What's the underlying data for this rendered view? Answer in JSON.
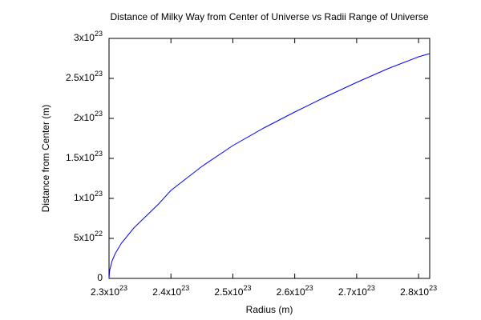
{
  "chart_data": {
    "type": "line",
    "title": "Distance of Milky Way from Center of Universe vs Radii Range of Universe",
    "x_label": "Radius (m)",
    "y_label": "Distance from Center (m)",
    "x": [
      2.3e+23,
      2.301e+23,
      2.305e+23,
      2.31e+23,
      2.32e+23,
      2.34e+23,
      2.36e+23,
      2.38e+23,
      2.4e+23,
      2.45e+23,
      2.5e+23,
      2.55e+23,
      2.6e+23,
      2.65e+23,
      2.7e+23,
      2.75e+23,
      2.8e+23,
      2.818e+23
    ],
    "series": [
      {
        "color": "#0000ff",
        "values": [
          0,
          1e+22,
          2.2e+22,
          3.1e+22,
          4.4e+22,
          6.3e+22,
          7.8e+22,
          9.3e+22,
          1.1e+23,
          1.4e+23,
          1.66e+23,
          1.88e+23,
          2.08e+23,
          2.27e+23,
          2.45e+23,
          2.62e+23,
          2.77e+23,
          2.81e+23
        ]
      }
    ],
    "xlim": [
      2.3e+23,
      2.818e+23
    ],
    "ylim": [
      0,
      3e+23
    ],
    "xticks": [
      {
        "value": 2.3e+23,
        "label": "2.3x10^23"
      },
      {
        "value": 2.4e+23,
        "label": "2.4x10^23"
      },
      {
        "value": 2.5e+23,
        "label": "2.5x10^23"
      },
      {
        "value": 2.6e+23,
        "label": "2.6x10^23"
      },
      {
        "value": 2.7e+23,
        "label": "2.7x10^23"
      },
      {
        "value": 2.8e+23,
        "label": "2.8x10^23"
      }
    ],
    "yticks": [
      0,
      {
        "value": 5e+22,
        "label": "5x10^22"
      },
      {
        "value": 1e+23,
        "label": "1x10^23"
      },
      {
        "value": 1.5e+23,
        "label": "1.5x10^23"
      },
      {
        "value": 2e+23,
        "label": "2x10^23"
      },
      {
        "value": 2.5e+23,
        "label": "2.5x10^23"
      },
      {
        "value": 3e+23,
        "label": "3x10^23"
      }
    ],
    "grid": false
  }
}
